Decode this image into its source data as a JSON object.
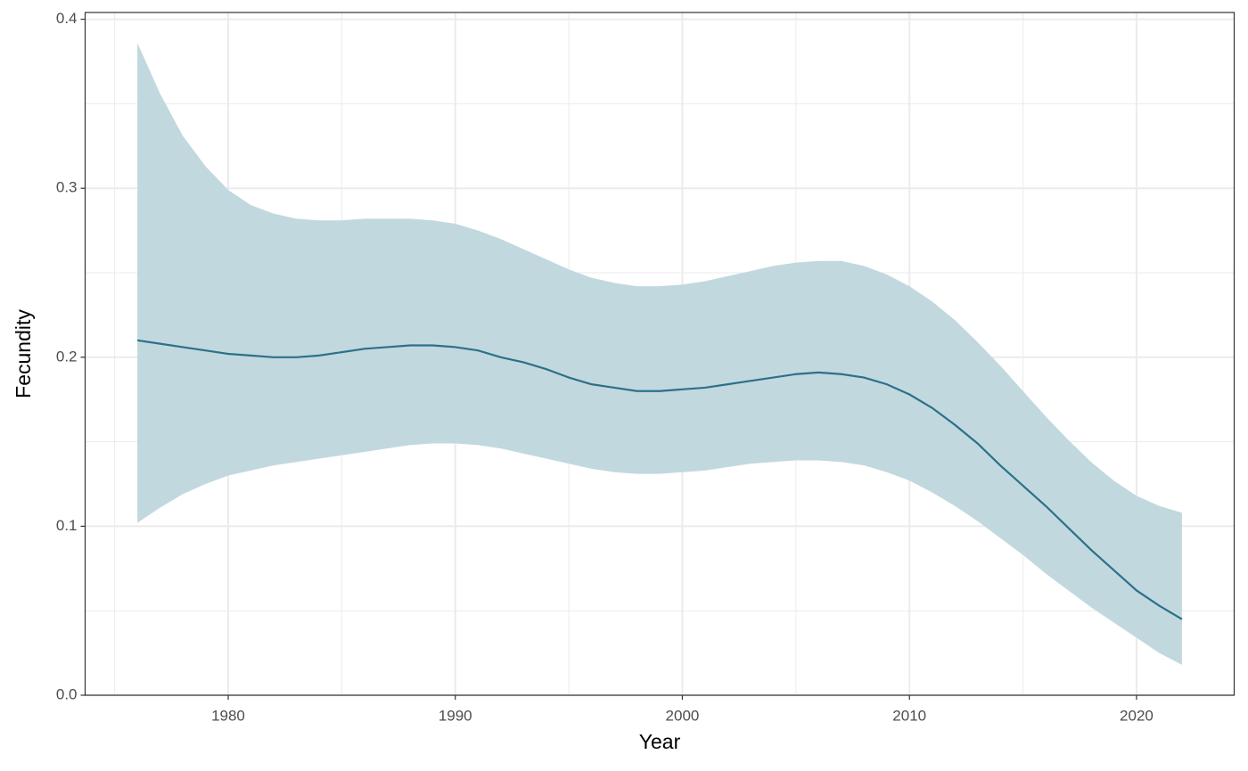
{
  "chart_data": {
    "type": "line",
    "x_label": "Year",
    "y_label": "Fecundity",
    "x": [
      1976,
      1977,
      1978,
      1979,
      1980,
      1981,
      1982,
      1983,
      1984,
      1985,
      1986,
      1987,
      1988,
      1989,
      1990,
      1991,
      1992,
      1993,
      1994,
      1995,
      1996,
      1997,
      1998,
      1999,
      2000,
      2001,
      2002,
      2003,
      2004,
      2005,
      2006,
      2007,
      2008,
      2009,
      2010,
      2011,
      2012,
      2013,
      2014,
      2015,
      2016,
      2017,
      2018,
      2019,
      2020,
      2021,
      2022
    ],
    "values": [
      0.21,
      0.208,
      0.206,
      0.204,
      0.202,
      0.201,
      0.2,
      0.2,
      0.201,
      0.203,
      0.205,
      0.206,
      0.207,
      0.207,
      0.206,
      0.204,
      0.2,
      0.197,
      0.193,
      0.188,
      0.184,
      0.182,
      0.18,
      0.18,
      0.181,
      0.182,
      0.184,
      0.186,
      0.188,
      0.19,
      0.191,
      0.19,
      0.188,
      0.184,
      0.178,
      0.17,
      0.16,
      0.149,
      0.136,
      0.124,
      0.112,
      0.099,
      0.086,
      0.074,
      0.062,
      0.053,
      0.045
    ],
    "band": {
      "upper": [
        0.386,
        0.356,
        0.331,
        0.313,
        0.299,
        0.29,
        0.285,
        0.282,
        0.281,
        0.281,
        0.282,
        0.282,
        0.282,
        0.281,
        0.279,
        0.275,
        0.27,
        0.264,
        0.258,
        0.252,
        0.247,
        0.244,
        0.242,
        0.242,
        0.243,
        0.245,
        0.248,
        0.251,
        0.254,
        0.256,
        0.257,
        0.257,
        0.254,
        0.249,
        0.242,
        0.233,
        0.222,
        0.209,
        0.195,
        0.18,
        0.165,
        0.151,
        0.138,
        0.127,
        0.118,
        0.112,
        0.108
      ],
      "lower": [
        0.102,
        0.111,
        0.119,
        0.125,
        0.13,
        0.133,
        0.136,
        0.138,
        0.14,
        0.142,
        0.144,
        0.146,
        0.148,
        0.149,
        0.149,
        0.148,
        0.146,
        0.143,
        0.14,
        0.137,
        0.134,
        0.132,
        0.131,
        0.131,
        0.132,
        0.133,
        0.135,
        0.137,
        0.138,
        0.139,
        0.139,
        0.138,
        0.136,
        0.132,
        0.127,
        0.12,
        0.112,
        0.103,
        0.093,
        0.083,
        0.072,
        0.062,
        0.052,
        0.043,
        0.034,
        0.025,
        0.018
      ],
      "color": "#c2d8df"
    },
    "color": "#2b7189",
    "xlim": [
      1973.7,
      2024.3
    ],
    "xticks": [
      1980,
      1990,
      2000,
      2010,
      2020
    ],
    "ylim": [
      0,
      0.404
    ],
    "yticks": [
      {
        "value": 0,
        "label": "0.0"
      },
      0.1,
      0.2,
      0.3,
      0.4
    ],
    "grid": true,
    "minor_grid": true
  }
}
